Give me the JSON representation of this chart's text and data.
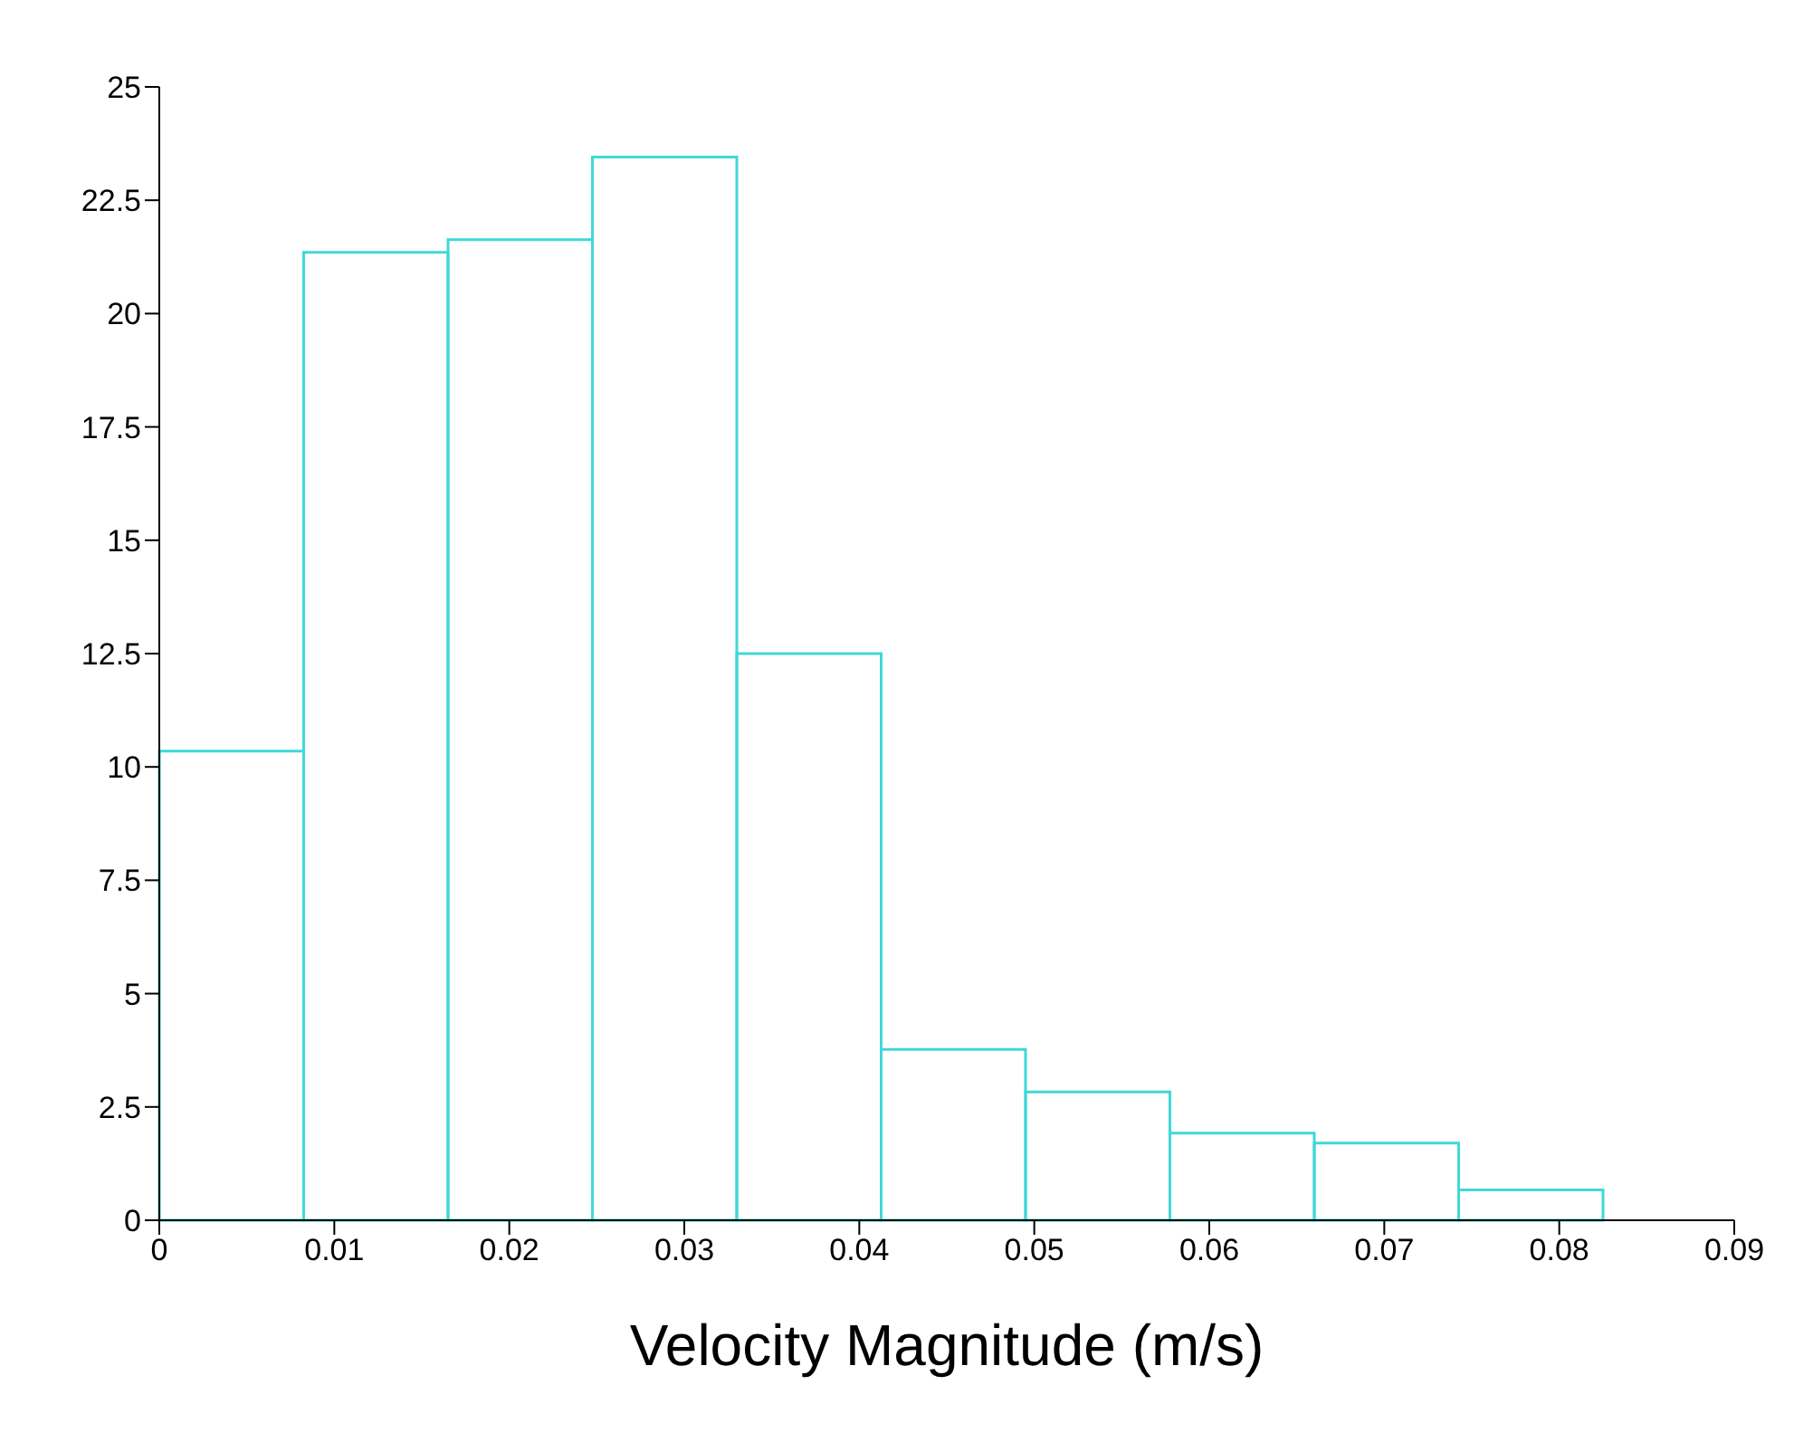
{
  "chart_data": {
    "type": "histogram",
    "xlabel": "Velocity Magnitude (m/s)",
    "bins": [
      0,
      0.00825,
      0.0165,
      0.02475,
      0.033,
      0.04125,
      0.0495,
      0.05775,
      0.066,
      0.07425,
      0.0825
    ],
    "values": [
      10.35,
      21.35,
      21.63,
      23.45,
      12.5,
      3.77,
      2.83,
      1.92,
      1.7,
      0.67
    ],
    "color": "#40d8d8",
    "xlim": [
      0,
      0.09
    ],
    "xticks": [
      0,
      0.01,
      0.02,
      0.03,
      0.04,
      0.05,
      0.06,
      0.07,
      0.08,
      0.09
    ],
    "ylim": [
      0,
      25
    ],
    "yticks": [
      0,
      2.5,
      5,
      7.5,
      10,
      12.5,
      15,
      17.5,
      20,
      22.5,
      25
    ],
    "grid": false
  }
}
